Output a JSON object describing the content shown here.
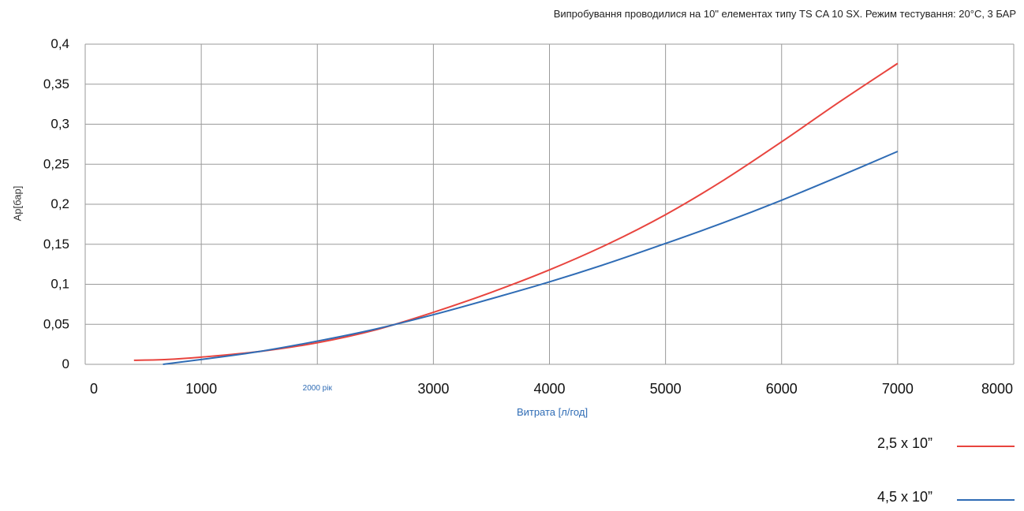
{
  "chart_data": {
    "type": "line",
    "title": "",
    "subtitle": "Випробування проводилися на 10\" елементах типу TS CA 10 SX. Режим тестування: 20°C, 3 БАР",
    "xlabel": "Витрата [л/год]",
    "ylabel": "Ар[бар]",
    "xlim": [
      0,
      8000
    ],
    "ylim": [
      0,
      0.4
    ],
    "x_ticks": [
      {
        "value": 0,
        "label": "0"
      },
      {
        "value": 1000,
        "label": "1000"
      },
      {
        "value": 2000,
        "label": "2000 рік"
      },
      {
        "value": 3000,
        "label": "3000"
      },
      {
        "value": 4000,
        "label": "4000"
      },
      {
        "value": 5000,
        "label": "5000"
      },
      {
        "value": 6000,
        "label": "6000"
      },
      {
        "value": 7000,
        "label": "7000"
      },
      {
        "value": 8000,
        "label": "8000"
      }
    ],
    "y_ticks": [
      {
        "value": 0,
        "label": "0"
      },
      {
        "value": 0.05,
        "label": "0,05"
      },
      {
        "value": 0.1,
        "label": "0,1"
      },
      {
        "value": 0.15,
        "label": "0,15"
      },
      {
        "value": 0.2,
        "label": "0,2"
      },
      {
        "value": 0.25,
        "label": "0,25"
      },
      {
        "value": 0.3,
        "label": "0,3"
      },
      {
        "value": 0.35,
        "label": "0,35"
      },
      {
        "value": 0.4,
        "label": "0,4"
      }
    ],
    "grid": true,
    "legend_position": "bottom-right",
    "series": [
      {
        "name": "2,5 x 10”",
        "color": "#e8443e",
        "x": [
          420,
          700,
          1000,
          1500,
          2000,
          2500,
          3000,
          3500,
          4000,
          4500,
          5000,
          5500,
          6000,
          6500,
          7000
        ],
        "y": [
          0.005,
          0.006,
          0.009,
          0.016,
          0.027,
          0.043,
          0.065,
          0.09,
          0.118,
          0.15,
          0.187,
          0.23,
          0.278,
          0.328,
          0.376
        ]
      },
      {
        "name": "4,5 x 10”",
        "color": "#2f6cb5",
        "x": [
          670,
          1000,
          1500,
          2000,
          2500,
          3000,
          3500,
          4000,
          4500,
          5000,
          5500,
          6000,
          6500,
          7000
        ],
        "y": [
          0.0,
          0.006,
          0.016,
          0.029,
          0.044,
          0.062,
          0.082,
          0.103,
          0.126,
          0.151,
          0.177,
          0.205,
          0.235,
          0.266
        ]
      }
    ]
  }
}
